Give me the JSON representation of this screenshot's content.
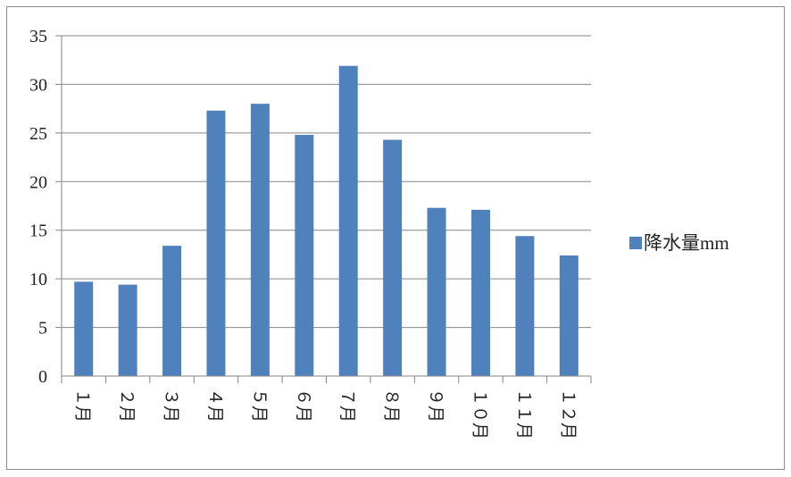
{
  "chart_data": {
    "type": "bar",
    "categories": [
      "１月",
      "２月",
      "３月",
      "４月",
      "５月",
      "６月",
      "７月",
      "８月",
      "９月",
      "１０月",
      "１１月",
      "１２月"
    ],
    "series": [
      {
        "name": "降水量mm",
        "values": [
          9.7,
          9.4,
          13.4,
          27.3,
          28.0,
          24.8,
          31.9,
          24.3,
          17.3,
          17.1,
          14.4,
          12.4
        ],
        "color": "#4f81bd"
      }
    ],
    "ylim": [
      0,
      35
    ],
    "yticks": [
      0,
      5,
      10,
      15,
      20,
      25,
      30,
      35
    ],
    "grid": true,
    "legend": "right",
    "colors": {
      "bar": "#4f81bd",
      "grid": "#868686",
      "frame": "#8c8c8c"
    }
  }
}
